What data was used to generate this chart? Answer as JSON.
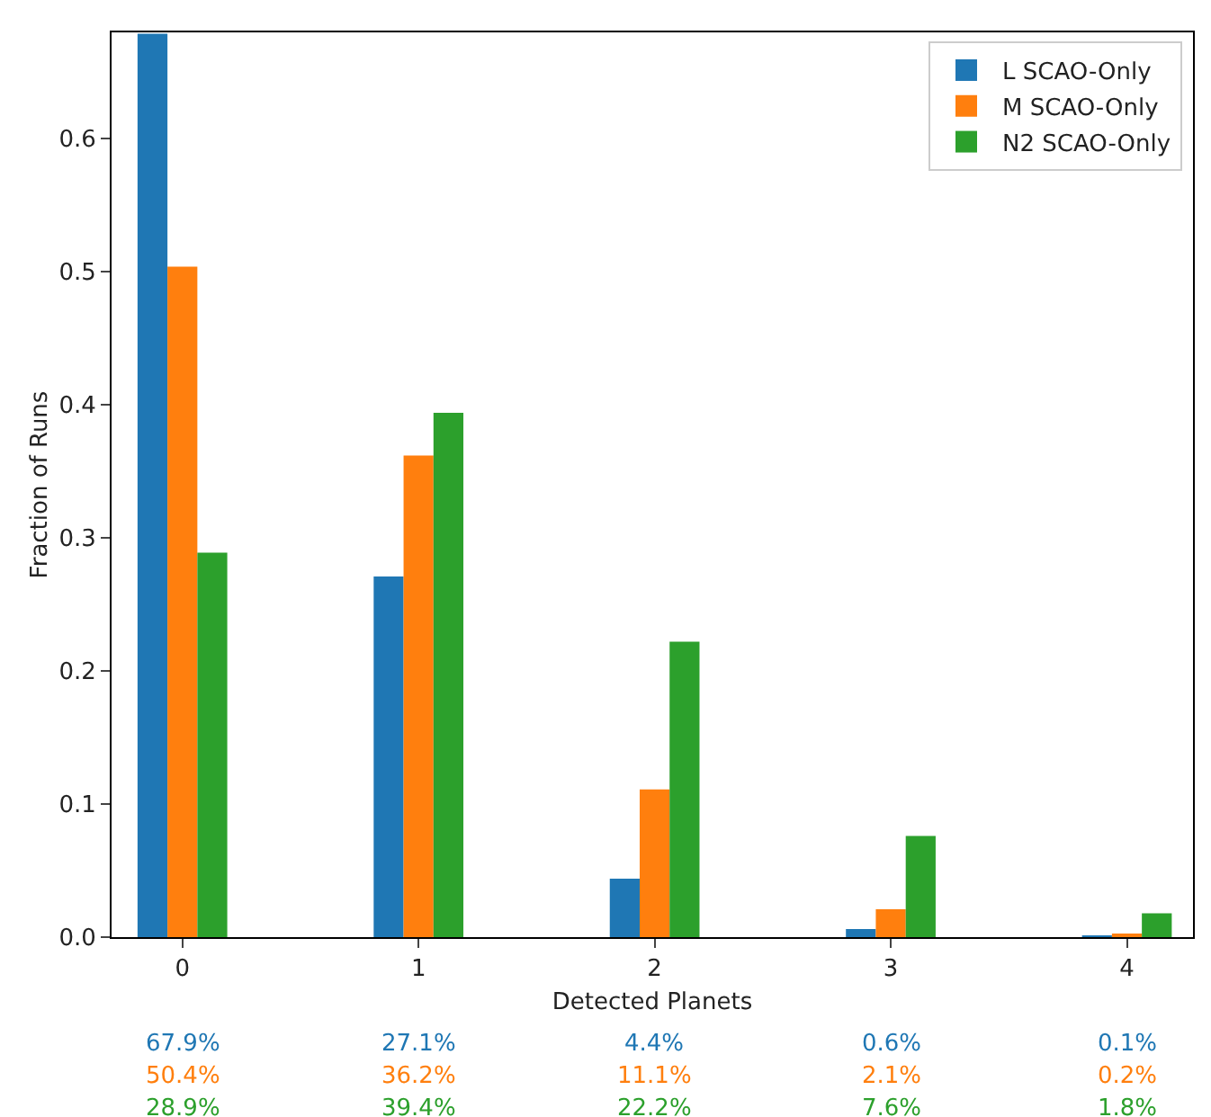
{
  "chart_data": {
    "type": "bar",
    "xlabel": "Detected Planets",
    "ylabel": "Fraction of Runs",
    "categories": [
      "0",
      "1",
      "2",
      "3",
      "4"
    ],
    "series": [
      {
        "name": "L SCAO-Only",
        "color": "#1f77b4",
        "values": [
          0.679,
          0.271,
          0.044,
          0.006,
          0.001
        ],
        "value_labels": [
          "67.9%",
          "27.1%",
          "4.4%",
          "0.6%",
          "0.1%"
        ]
      },
      {
        "name": "M SCAO-Only",
        "color": "#ff7f0e",
        "values": [
          0.504,
          0.362,
          0.111,
          0.021,
          0.002
        ],
        "value_labels": [
          "50.4%",
          "36.2%",
          "11.1%",
          "2.1%",
          "0.2%"
        ]
      },
      {
        "name": "N2 SCAO-Only",
        "color": "#2ca02c",
        "values": [
          0.289,
          0.394,
          0.222,
          0.076,
          0.018
        ],
        "value_labels": [
          "28.9%",
          "39.4%",
          "22.2%",
          "7.6%",
          "1.8%"
        ]
      }
    ],
    "ylim": [
      0,
      0.68
    ],
    "yticks": [
      {
        "value": 0,
        "label": "0.0"
      },
      0.1,
      0.2,
      0.3,
      0.4,
      0.5,
      0.6
    ],
    "grid": false,
    "legend": "top right"
  }
}
